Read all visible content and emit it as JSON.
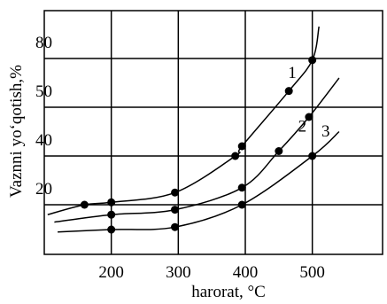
{
  "chart_data": {
    "type": "line",
    "xlabel": "harorat, °C",
    "ylabel": "Vaznni yo‘qotish,%",
    "xlim": [
      100,
      550
    ],
    "ylim": [
      0,
      80
    ],
    "grid": true,
    "x_ticks": [
      {
        "value": 200,
        "label": "200"
      },
      {
        "value": 300,
        "label": "300"
      },
      {
        "value": 400,
        "label": "400"
      },
      {
        "value": 500,
        "label": "500"
      }
    ],
    "y_ticks": [
      {
        "value": 20,
        "label": "20"
      },
      {
        "value": 40,
        "label": "40"
      },
      {
        "value": 50,
        "label": "50"
      },
      {
        "value": 80,
        "label": "80"
      }
    ],
    "series": [
      {
        "label": "1",
        "x": [
          105,
          160,
          200,
          295,
          385,
          395,
          465,
          500
        ],
        "y": [
          16,
          20,
          21,
          25,
          40,
          42,
          60,
          79
        ],
        "markers_x": [
          160,
          200,
          295,
          385,
          395,
          465,
          500
        ],
        "markers_y": [
          20,
          21,
          25,
          40,
          42,
          60,
          79
        ],
        "label_at": {
          "x": 470,
          "y": 68
        },
        "curve_to": {
          "x": 510,
          "y": 90
        }
      },
      {
        "label": "2",
        "x": [
          115,
          200,
          295,
          395,
          450,
          495
        ],
        "y": [
          13,
          16,
          18,
          27,
          41,
          48
        ],
        "markers_x": [
          200,
          295,
          395,
          450,
          495
        ],
        "markers_y": [
          16,
          18,
          27,
          41,
          48
        ],
        "label_at": {
          "x": 485,
          "y": 45
        },
        "curve_to": {
          "x": 540,
          "y": 68
        }
      },
      {
        "label": "3",
        "x": [
          120,
          200,
          295,
          395,
          500
        ],
        "y": [
          9,
          10,
          11,
          20,
          40
        ],
        "markers_x": [
          200,
          295,
          395,
          500
        ],
        "markers_y": [
          10,
          11,
          20,
          40
        ],
        "label_at": {
          "x": 520,
          "y": 44
        },
        "curve_to": {
          "x": 540,
          "y": 45
        }
      }
    ]
  }
}
